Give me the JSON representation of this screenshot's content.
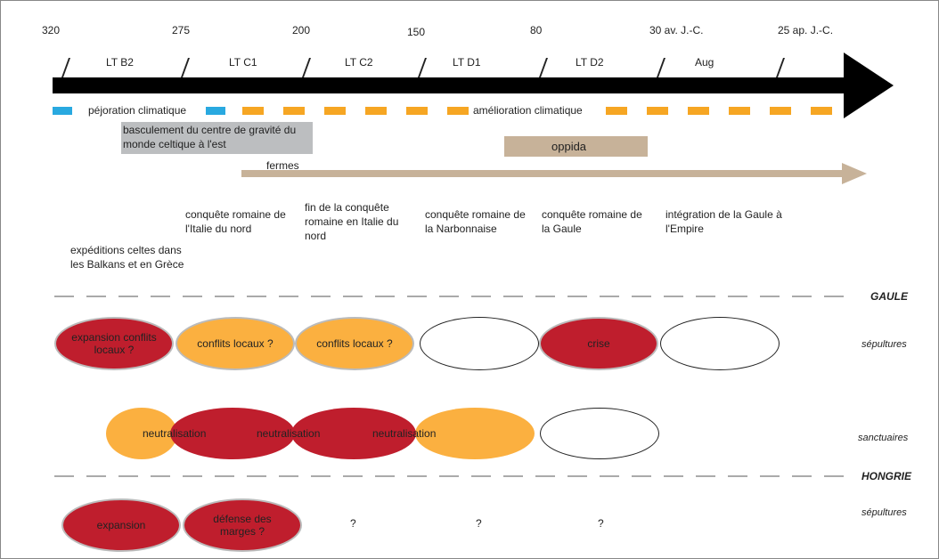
{
  "dates": [
    "320",
    "275",
    "200",
    "150",
    "80",
    "30 av. J.-C.",
    "25 ap. J.-C."
  ],
  "periods": [
    "LT B2",
    "LT C1",
    "LT C2",
    "LT D1",
    "LT D2",
    "Aug"
  ],
  "climate": {
    "bad": "péjoration climatique",
    "good": "amélioration climatique"
  },
  "shift_box": "basculement du centre de gravité du monde celtique à l'est",
  "oppida": "oppida",
  "fermes": "fermes",
  "events": [
    "expéditions celtes dans les Balkans et en Grèce",
    "conquête romaine de l'Italie du nord",
    "fin de la conquête romaine en Italie du nord",
    "conquête romaine de la Narbonnaise",
    "conquête romaine de la Gaule",
    "intégration de la Gaule à l'Empire"
  ],
  "regions": {
    "gaule": "GAULE",
    "hongrie": "HONGRIE"
  },
  "row_labels": {
    "sepultures": "sépultures",
    "sanctuaires": "sanctuaires"
  },
  "gaule_sepultures": [
    "expansion conflits locaux ?",
    "conflits locaux ?",
    "conflits locaux ?",
    "",
    "crise",
    ""
  ],
  "gaule_sanctuaires": [
    "",
    "neutralisation",
    "neutralisation",
    "neutralisation",
    ""
  ],
  "hongrie_sepultures": [
    "expansion",
    "défense des marges ?",
    "?",
    "?",
    "?"
  ],
  "colors": {
    "red": "#bf1e2d",
    "orange": "#fbb040",
    "blue": "#29a9e0",
    "tan": "#c7b299",
    "gray": "#bcbec0",
    "arrow": "#000000"
  }
}
